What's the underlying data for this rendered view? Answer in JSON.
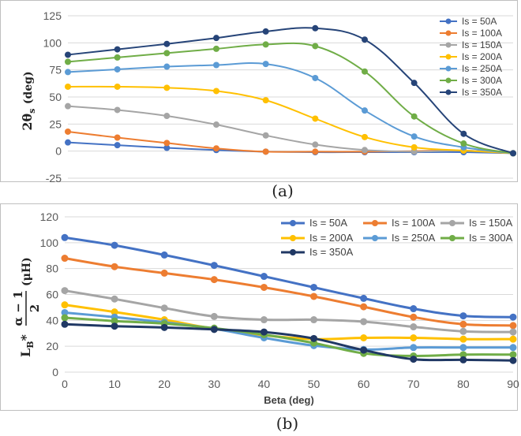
{
  "chart_data": [
    {
      "type": "line",
      "x": [
        0,
        10,
        20,
        30,
        40,
        50,
        60,
        70,
        80,
        90
      ],
      "ylabel": "2θs (deg)",
      "ylabel_parts": {
        "main": "2θ",
        "sub": "s",
        "unit": "(deg)"
      },
      "ylim": [
        -25,
        125
      ],
      "yticks": [
        "-25",
        "0",
        "25",
        "50",
        "75",
        "100",
        "125"
      ],
      "grid": true,
      "legend_position": "right",
      "caption": "(a)",
      "series": [
        {
          "name": "Is = 50A",
          "color": "#4472C4",
          "values": [
            8,
            5.5,
            3,
            1,
            -0.5,
            -1,
            -1,
            -1,
            -1,
            -2
          ]
        },
        {
          "name": "Is = 100A",
          "color": "#ED7D31",
          "values": [
            18,
            12.5,
            7.5,
            2.5,
            -0.5,
            -0.5,
            -0.5,
            0,
            0.5,
            -2
          ]
        },
        {
          "name": "Is = 150A",
          "color": "#A5A5A5",
          "values": [
            41.5,
            38,
            32.5,
            24.5,
            14.5,
            6,
            1,
            -0.5,
            0.5,
            -2
          ]
        },
        {
          "name": "Is = 200A",
          "color": "#FFC000",
          "values": [
            59.5,
            59.5,
            58.5,
            55.5,
            47,
            30,
            13,
            3.5,
            0.5,
            -2
          ]
        },
        {
          "name": "Is = 250A",
          "color": "#5B9BD5",
          "values": [
            73,
            75.5,
            78,
            79.5,
            80.5,
            67.5,
            37.5,
            13.5,
            3.5,
            -2
          ]
        },
        {
          "name": "Is = 300A",
          "color": "#70AD47",
          "values": [
            82.5,
            86.5,
            90.5,
            94.5,
            98.5,
            97,
            73.5,
            32,
            7,
            -2
          ]
        },
        {
          "name": "Is = 350A",
          "color": "#264478",
          "values": [
            89,
            94,
            99,
            104.5,
            110.5,
            113.5,
            103,
            63,
            16,
            -2
          ]
        }
      ]
    },
    {
      "type": "line",
      "x": [
        0,
        10,
        20,
        30,
        40,
        50,
        60,
        70,
        80,
        90
      ],
      "xlabel": "Beta (deg)",
      "xticks": [
        "0",
        "10",
        "20",
        "30",
        "40",
        "50",
        "60",
        "70",
        "80",
        "90"
      ],
      "ylabel": "L_B * (α − 1)/2 (μH)",
      "ylabel_parts": {
        "L": "L",
        "sub": "B",
        "star": "*",
        "num": "α − 1",
        "den": "2",
        "unit": "(μH)"
      },
      "ylim": [
        0,
        120
      ],
      "yticks": [
        "0",
        "20",
        "40",
        "60",
        "80",
        "100",
        "120"
      ],
      "grid": true,
      "legend_position": "top",
      "caption": "(b)",
      "series": [
        {
          "name": "Is = 50A",
          "color": "#4472C4",
          "values": [
            104,
            98,
            90.5,
            82.5,
            74,
            65.5,
            57,
            49,
            43.5,
            42.5
          ]
        },
        {
          "name": "Is = 100A",
          "color": "#ED7D31",
          "values": [
            88,
            81.5,
            76.5,
            71.5,
            65.5,
            58.5,
            50.5,
            42.5,
            37,
            36
          ]
        },
        {
          "name": "Is = 150A",
          "color": "#A5A5A5",
          "values": [
            63,
            56.5,
            49.5,
            43,
            40.5,
            40.5,
            39,
            35,
            31.5,
            31
          ]
        },
        {
          "name": "Is = 200A",
          "color": "#FFC000",
          "values": [
            52,
            46.5,
            40.5,
            33.5,
            28.5,
            25.5,
            26.5,
            26.5,
            25.5,
            25.5
          ]
        },
        {
          "name": "Is = 250A",
          "color": "#5B9BD5",
          "values": [
            46,
            42.5,
            38.5,
            33.5,
            26.5,
            20.5,
            17.5,
            19,
            19,
            19
          ]
        },
        {
          "name": "Is = 300A",
          "color": "#70AD47",
          "values": [
            42,
            39.5,
            37.5,
            34,
            29,
            22.5,
            14.5,
            12.5,
            13.5,
            13.5
          ]
        },
        {
          "name": "Is = 350A",
          "color": "#203864",
          "values": [
            37,
            35.5,
            34.5,
            33,
            31,
            26,
            17,
            10,
            9.5,
            9
          ]
        }
      ]
    }
  ]
}
